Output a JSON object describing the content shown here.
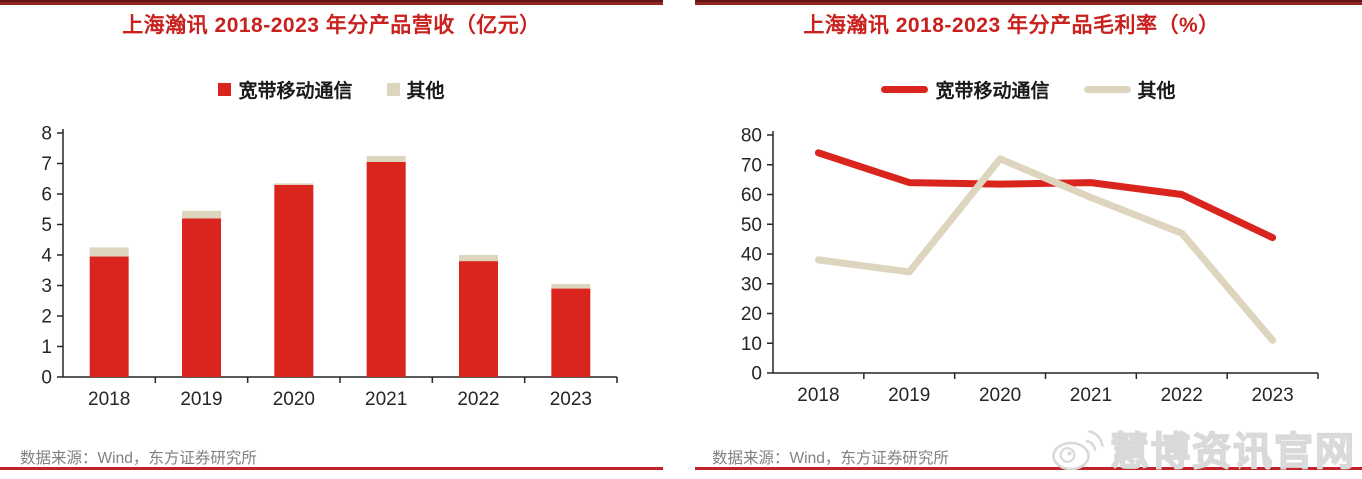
{
  "panels": [
    {
      "title": "上海瀚讯 2018-2023 年分产品营收（亿元）",
      "source": "数据来源：Wind，东方证券研究所"
    },
    {
      "title": "上海瀚讯 2018-2023 年分产品毛利率（%）",
      "source": "数据来源：Wind，东方证券研究所"
    }
  ],
  "watermark": {
    "text": "慧博资讯官网",
    "icon": "megaphone-circle-icon"
  },
  "colors": {
    "series_red": "#d9251d",
    "series_beige": "#ddd5bd",
    "title_red": "#c8211e",
    "top_rule": "#8e2722",
    "top_rule_dark": "#5f1512",
    "bottom_rule": "#c2232a",
    "source_gray": "#818181",
    "axis_black": "#262626",
    "watermark_gray": "#d9d9d9"
  },
  "chart_data": [
    {
      "type": "bar",
      "stacked": true,
      "title": "上海瀚讯 2018-2023 年分产品营收（亿元）",
      "unit": "亿元",
      "categories": [
        "2018",
        "2019",
        "2020",
        "2021",
        "2022",
        "2023"
      ],
      "series": [
        {
          "name": "宽带移动通信",
          "color": "#d9251d",
          "values": [
            3.95,
            5.2,
            6.3,
            7.05,
            3.8,
            2.9
          ]
        },
        {
          "name": "其他",
          "color": "#ddd5bd",
          "values": [
            0.3,
            0.25,
            0.05,
            0.2,
            0.2,
            0.15
          ]
        }
      ],
      "totals": [
        4.25,
        5.45,
        6.35,
        7.25,
        4.0,
        3.05
      ],
      "ylim": [
        0,
        8
      ],
      "yticks": [
        0,
        1,
        2,
        3,
        4,
        5,
        6,
        7,
        8
      ],
      "legend_position": "top",
      "grid": false
    },
    {
      "type": "line",
      "title": "上海瀚讯 2018-2023 年分产品毛利率（%）",
      "unit": "%",
      "categories": [
        "2018",
        "2019",
        "2020",
        "2021",
        "2022",
        "2023"
      ],
      "series": [
        {
          "name": "宽带移动通信",
          "color": "#d9251d",
          "values": [
            74,
            64,
            63.5,
            64,
            60,
            45.5
          ]
        },
        {
          "name": "其他",
          "color": "#ddd5bd",
          "values": [
            38,
            34,
            72,
            59,
            47,
            11
          ]
        }
      ],
      "ylim": [
        0,
        80
      ],
      "yticks": [
        0,
        10,
        20,
        30,
        40,
        50,
        60,
        70,
        80
      ],
      "legend_position": "top",
      "grid": false
    }
  ]
}
